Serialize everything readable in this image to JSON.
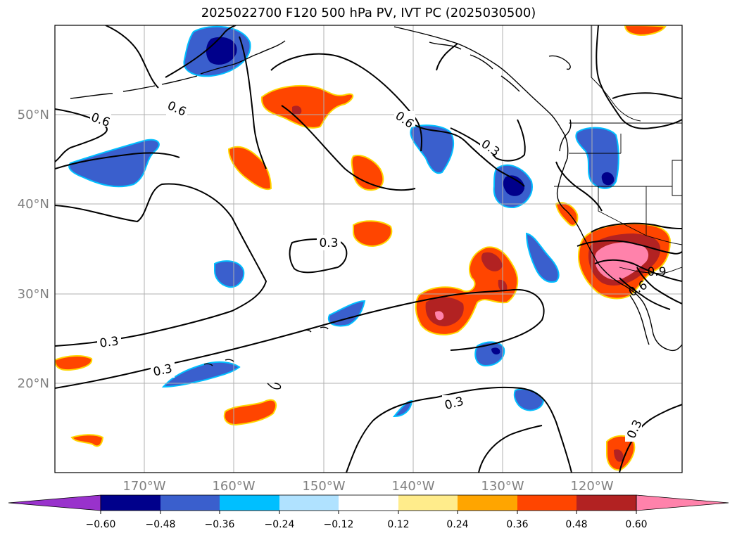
{
  "title": "2025022700 F120 500 hPa PV, IVT PC (2025030500)",
  "map": {
    "lat_labels": [
      "50°N",
      "40°N",
      "30°N",
      "20°N"
    ],
    "lon_labels": [
      "170°W",
      "160°W",
      "150°W",
      "140°W",
      "130°W",
      "120°W"
    ],
    "contour_labels": [
      "0.6",
      "0.6",
      "0.6",
      "0.3",
      "0.3",
      "0.3",
      "0.3",
      "0.3",
      "0.3",
      "0.6",
      "0.9"
    ]
  },
  "colorbar": {
    "ticks": [
      "−0.60",
      "−0.48",
      "−0.36",
      "−0.24",
      "−0.12",
      "0.12",
      "0.24",
      "0.36",
      "0.48",
      "0.60"
    ],
    "colors": [
      "#9932cc",
      "#00008b",
      "#3a5fcd",
      "#00bfff",
      "#b0e2ff",
      "#ffffff",
      "#ffec8b",
      "#ffa500",
      "#ff4500",
      "#b22222",
      "#ff82ab"
    ]
  },
  "colors": {
    "dark_blue": "#00008b",
    "medium_blue": "#3a5fcd",
    "light_blue": "#00bfff",
    "orange_red": "#ff4500",
    "firebrick": "#b22222",
    "pink": "#ff82ab",
    "gold": "#ffd700",
    "grid": "#b0b0b0"
  }
}
